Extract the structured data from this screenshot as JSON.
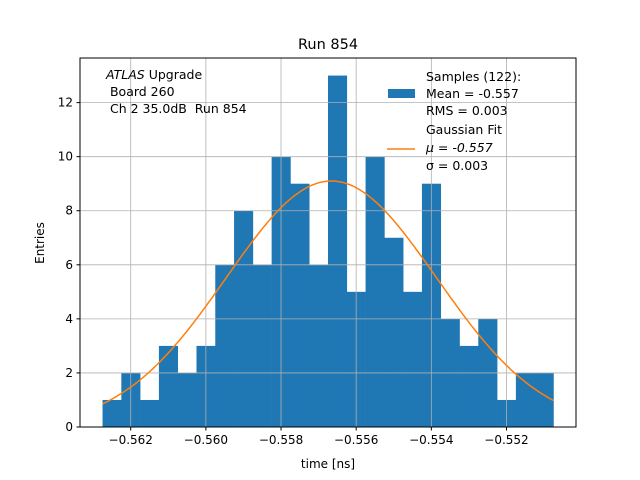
{
  "chart_data": {
    "type": "bar",
    "title": "Run 854",
    "xlabel": "time [ns]",
    "ylabel": "Entries",
    "xlim": [
      -0.56335,
      -0.55015
    ],
    "ylim": [
      0,
      13.65
    ],
    "grid": true,
    "xticks": [
      -0.562,
      -0.56,
      -0.558,
      -0.556,
      -0.554,
      -0.552
    ],
    "xtick_labels": [
      "−0.562",
      "−0.560",
      "−0.558",
      "−0.556",
      "−0.554",
      "−0.552"
    ],
    "yticks": [
      0,
      2,
      4,
      6,
      8,
      10,
      12
    ],
    "ytick_labels": [
      "0",
      "2",
      "4",
      "6",
      "8",
      "10",
      "12"
    ],
    "bin_start": -0.56275,
    "bin_width": 0.0005,
    "values": [
      1,
      2,
      1,
      3,
      2,
      3,
      6,
      8,
      6,
      10,
      9,
      6,
      13,
      5,
      10,
      7,
      5,
      9,
      4,
      3,
      4,
      1,
      2,
      2
    ],
    "fit": {
      "mu": -0.55666,
      "sigma": 0.0028,
      "amplitude": 9.1
    },
    "annotation": {
      "italic": "ATLAS",
      "line1_rest": " Upgrade",
      "line2": " Board 260",
      "line3": " Ch 2 35.0dB  Run 854"
    },
    "legend": {
      "placement": "top-right",
      "hist_lines": [
        "Samples (122):",
        "Mean = -0.557",
        "RMS = 0.003"
      ],
      "fit_lines": [
        "Gaussian Fit",
        "μ = -0.557",
        "σ = 0.003"
      ]
    },
    "colors": {
      "hist": "#1f77b4",
      "fit": "#ff7f0e",
      "grid": "#b0b0b0"
    }
  }
}
